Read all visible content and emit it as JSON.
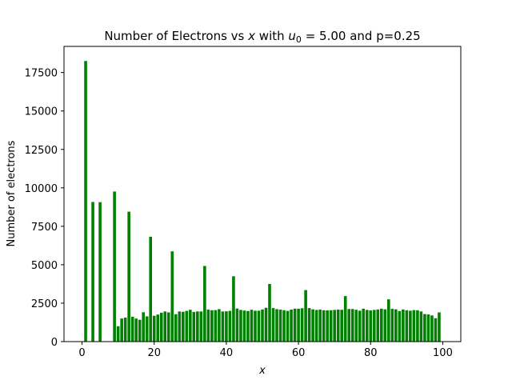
{
  "chart_data": {
    "type": "bar",
    "title_parts": {
      "prefix": "Number of Electrons vs ",
      "x_symbol": "x",
      "middle": " with ",
      "u_symbol": "u",
      "u_subscript": "0",
      "equals_value": " = 5.00",
      "suffix": " and p=0.25"
    },
    "xlabel": "x",
    "ylabel": "Number of electrons",
    "xlim": [
      -5,
      105
    ],
    "ylim": [
      0,
      19200
    ],
    "xticks": [
      0,
      20,
      40,
      60,
      80,
      100
    ],
    "yticks": [
      0,
      2500,
      5000,
      7500,
      10000,
      12500,
      15000,
      17500
    ],
    "grid": false,
    "bar_color": "#008000",
    "bar_width": 0.8,
    "x": [
      1,
      3,
      5,
      7,
      9,
      10,
      11,
      12,
      13,
      14,
      15,
      16,
      17,
      18,
      19,
      20,
      21,
      22,
      23,
      24,
      25,
      26,
      27,
      28,
      29,
      30,
      31,
      32,
      33,
      34,
      35,
      36,
      37,
      38,
      39,
      40,
      41,
      42,
      43,
      44,
      45,
      46,
      47,
      48,
      49,
      50,
      51,
      52,
      53,
      54,
      55,
      56,
      57,
      58,
      59,
      60,
      61,
      62,
      63,
      64,
      65,
      66,
      67,
      68,
      69,
      70,
      71,
      72,
      73,
      74,
      75,
      76,
      77,
      78,
      79,
      80,
      81,
      82,
      83,
      84,
      85,
      86,
      87,
      88,
      89,
      90,
      91,
      92,
      93,
      94,
      95,
      96,
      97,
      98,
      99
    ],
    "values": [
      18250,
      9080,
      9070,
      0,
      9760,
      1000,
      1500,
      1560,
      8450,
      1620,
      1500,
      1420,
      1910,
      1640,
      6820,
      1680,
      1760,
      1880,
      1960,
      1900,
      5870,
      1780,
      1960,
      1940,
      2000,
      2070,
      1930,
      1960,
      1960,
      4920,
      2080,
      2040,
      2050,
      2110,
      1960,
      1970,
      2000,
      4250,
      2150,
      2060,
      2020,
      1990,
      2070,
      2010,
      2010,
      2090,
      2200,
      3750,
      2180,
      2110,
      2080,
      2040,
      2000,
      2080,
      2140,
      2140,
      2170,
      3350,
      2180,
      2100,
      2060,
      2080,
      2040,
      2030,
      2040,
      2060,
      2080,
      2070,
      2960,
      2120,
      2120,
      2070,
      2010,
      2140,
      2060,
      2030,
      2060,
      2090,
      2140,
      2100,
      2750,
      2130,
      2100,
      1990,
      2090,
      2040,
      2010,
      2050,
      2040,
      1960,
      1790,
      1770,
      1700,
      1520,
      1900
    ]
  }
}
